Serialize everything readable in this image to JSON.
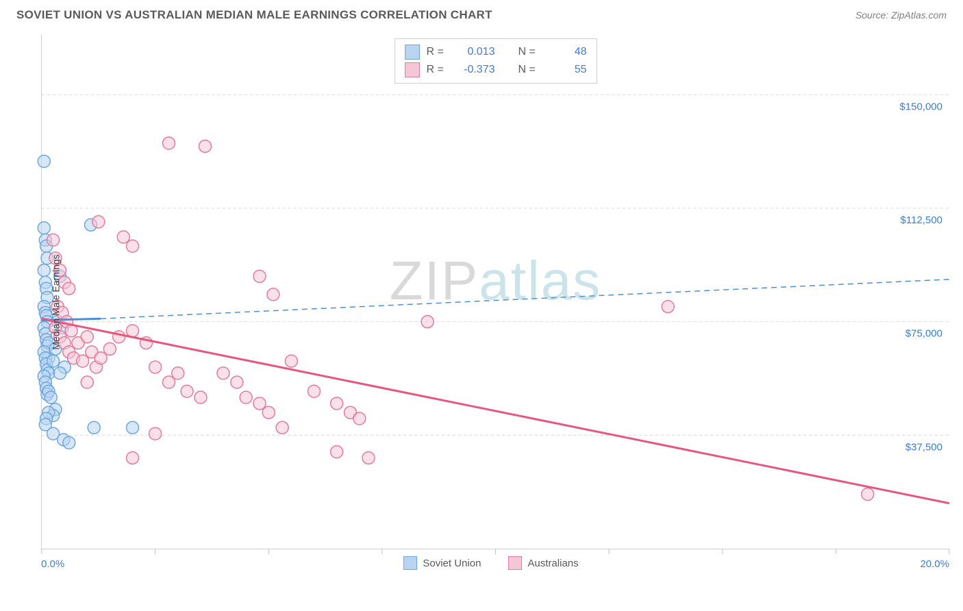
{
  "header": {
    "title": "SOVIET UNION VS AUSTRALIAN MEDIAN MALE EARNINGS CORRELATION CHART",
    "source": "Source: ZipAtlas.com"
  },
  "watermark": {
    "part1": "ZIP",
    "part2": "atlas"
  },
  "chart": {
    "type": "scatter",
    "background_color": "#ffffff",
    "grid_color": "#d8d8d8",
    "axis_color": "#d0d0d0",
    "ylabel": "Median Male Earnings",
    "ylabel_fontsize": 14,
    "tick_label_color": "#3b7dd8",
    "tick_label_fontsize": 15,
    "xlim": [
      0,
      20
    ],
    "ylim": [
      0,
      170000
    ],
    "x_axis": {
      "min_label": "0.0%",
      "max_label": "20.0%",
      "tick_positions": [
        0,
        2.5,
        5,
        7.5,
        10,
        12.5,
        15,
        17.5,
        20
      ]
    },
    "y_axis": {
      "gridlines": [
        {
          "value": 37500,
          "label": "$37,500"
        },
        {
          "value": 75000,
          "label": "$75,000"
        },
        {
          "value": 112500,
          "label": "$112,500"
        },
        {
          "value": 150000,
          "label": "$150,000"
        }
      ]
    },
    "series": [
      {
        "name": "Soviet Union",
        "legend_label": "Soviet Union",
        "fill_color": "#b8d4f0",
        "stroke_color": "#6ca7e0",
        "fill_opacity": 0.55,
        "marker_radius": 9,
        "stats": {
          "R": "0.013",
          "N": "48"
        },
        "trend": {
          "style": "solid-then-dashed",
          "solid_width": 3,
          "dash_width": 1.5,
          "dash_pattern": "8 6",
          "color": "#4b8fd9",
          "x_solid_end": 1.3,
          "y_start": 75500,
          "y_end_solid": 76000,
          "y_end": 89000
        },
        "points": [
          [
            0.05,
            128000
          ],
          [
            0.05,
            106000
          ],
          [
            0.08,
            102000
          ],
          [
            0.1,
            100000
          ],
          [
            0.12,
            96000
          ],
          [
            0.05,
            92000
          ],
          [
            0.08,
            88000
          ],
          [
            0.1,
            86000
          ],
          [
            0.12,
            83000
          ],
          [
            0.05,
            80000
          ],
          [
            0.08,
            78000
          ],
          [
            0.1,
            77000
          ],
          [
            0.12,
            75000
          ],
          [
            0.05,
            73000
          ],
          [
            0.08,
            71000
          ],
          [
            0.1,
            69000
          ],
          [
            0.12,
            67000
          ],
          [
            0.15,
            68000
          ],
          [
            0.15,
            63000
          ],
          [
            0.05,
            65000
          ],
          [
            0.08,
            63000
          ],
          [
            0.1,
            61000
          ],
          [
            0.12,
            59000
          ],
          [
            0.15,
            58000
          ],
          [
            0.05,
            57000
          ],
          [
            0.08,
            55000
          ],
          [
            0.1,
            53000
          ],
          [
            0.12,
            51000
          ],
          [
            0.15,
            52000
          ],
          [
            0.2,
            50000
          ],
          [
            0.25,
            62000
          ],
          [
            0.3,
            66000
          ],
          [
            0.35,
            75000
          ],
          [
            0.4,
            90000
          ],
          [
            0.45,
            73000
          ],
          [
            0.5,
            60000
          ],
          [
            0.3,
            46000
          ],
          [
            0.4,
            58000
          ],
          [
            0.25,
            44000
          ],
          [
            0.15,
            45000
          ],
          [
            0.1,
            43000
          ],
          [
            0.08,
            41000
          ],
          [
            0.25,
            38000
          ],
          [
            0.48,
            36000
          ],
          [
            0.6,
            35000
          ],
          [
            1.08,
            107000
          ],
          [
            1.15,
            40000
          ],
          [
            2.0,
            40000
          ]
        ]
      },
      {
        "name": "Australians",
        "legend_label": "Australians",
        "fill_color": "#f5c6d6",
        "stroke_color": "#e67a9b",
        "fill_opacity": 0.55,
        "marker_radius": 9,
        "stats": {
          "R": "-0.373",
          "N": "55"
        },
        "trend": {
          "style": "solid",
          "solid_width": 3,
          "color": "#e8567e",
          "y_start": 76000,
          "y_end": 15000
        },
        "points": [
          [
            0.25,
            102000
          ],
          [
            0.3,
            96000
          ],
          [
            0.4,
            92000
          ],
          [
            0.5,
            88000
          ],
          [
            0.6,
            86000
          ],
          [
            0.35,
            80000
          ],
          [
            0.45,
            78000
          ],
          [
            0.55,
            75000
          ],
          [
            0.65,
            72000
          ],
          [
            0.3,
            73000
          ],
          [
            0.4,
            70000
          ],
          [
            0.5,
            68000
          ],
          [
            0.6,
            65000
          ],
          [
            0.7,
            63000
          ],
          [
            0.8,
            68000
          ],
          [
            0.9,
            62000
          ],
          [
            1.0,
            70000
          ],
          [
            1.1,
            65000
          ],
          [
            1.2,
            60000
          ],
          [
            1.0,
            55000
          ],
          [
            1.3,
            63000
          ],
          [
            1.5,
            66000
          ],
          [
            1.7,
            70000
          ],
          [
            2.0,
            72000
          ],
          [
            2.3,
            68000
          ],
          [
            2.5,
            60000
          ],
          [
            2.8,
            55000
          ],
          [
            3.0,
            58000
          ],
          [
            3.2,
            52000
          ],
          [
            3.5,
            50000
          ],
          [
            1.8,
            103000
          ],
          [
            2.0,
            100000
          ],
          [
            1.25,
            108000
          ],
          [
            2.8,
            134000
          ],
          [
            3.6,
            133000
          ],
          [
            4.8,
            90000
          ],
          [
            5.1,
            84000
          ],
          [
            5.5,
            62000
          ],
          [
            6.0,
            52000
          ],
          [
            6.5,
            48000
          ],
          [
            6.8,
            45000
          ],
          [
            7.0,
            43000
          ],
          [
            4.0,
            58000
          ],
          [
            4.3,
            55000
          ],
          [
            4.5,
            50000
          ],
          [
            4.8,
            48000
          ],
          [
            5.0,
            45000
          ],
          [
            5.3,
            40000
          ],
          [
            6.5,
            32000
          ],
          [
            7.2,
            30000
          ],
          [
            8.5,
            75000
          ],
          [
            13.8,
            80000
          ],
          [
            2.0,
            30000
          ],
          [
            2.5,
            38000
          ],
          [
            18.2,
            18000
          ]
        ]
      }
    ]
  },
  "stats_box": {
    "rows": [
      {
        "r_label": "R =",
        "n_label": "N ="
      },
      {
        "r_label": "R =",
        "n_label": "N ="
      }
    ]
  },
  "bottom_legend": {
    "items": [
      {
        "label": "Soviet Union"
      },
      {
        "label": "Australians"
      }
    ]
  }
}
